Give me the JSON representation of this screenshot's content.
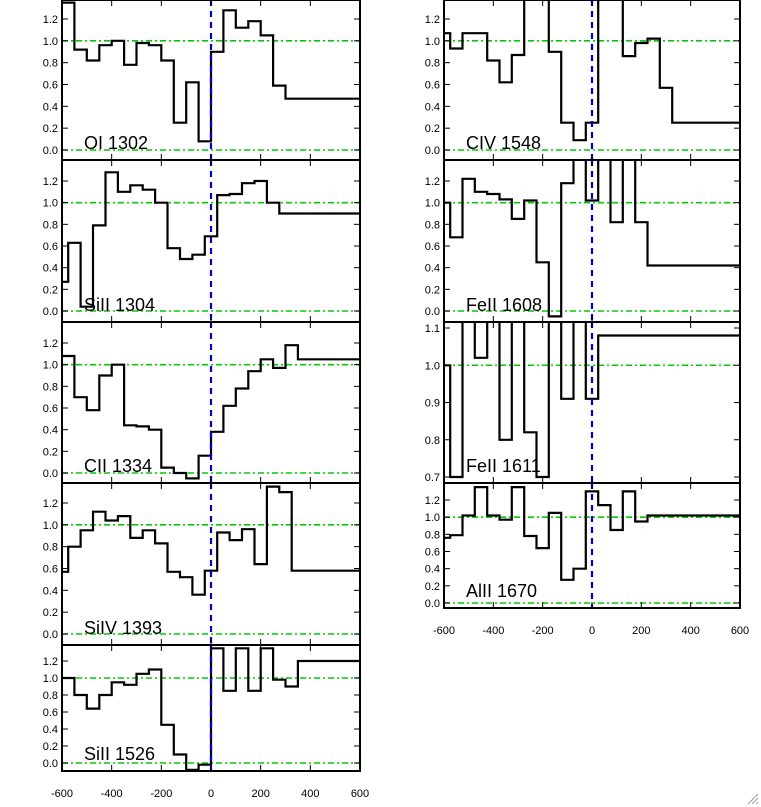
{
  "chart_data": [
    {
      "type": "line",
      "step": true,
      "label": "OI 1302",
      "xlim": [
        -600,
        600
      ],
      "ylim": [
        -0.1,
        1.35
      ],
      "yticks": [
        "0.0",
        "0.2",
        "0.4",
        "0.6",
        "0.8",
        "1.0",
        "1.2"
      ],
      "continuum": 1.0,
      "zero_level": 0.0,
      "x": [
        -600,
        -550,
        -500,
        -450,
        -400,
        -350,
        -300,
        -250,
        -200,
        -150,
        -100,
        -50,
        0,
        50,
        100,
        150,
        200,
        250,
        300,
        350,
        400,
        450,
        500,
        550,
        600
      ],
      "y": [
        1.35,
        0.92,
        0.82,
        0.96,
        1.0,
        0.78,
        0.98,
        0.96,
        0.82,
        0.25,
        0.62,
        0.08,
        0.9,
        1.28,
        1.12,
        1.18,
        1.05,
        0.59,
        0.47,
        0.47,
        0.47,
        0.47,
        0.47,
        0.47,
        0.47
      ]
    },
    {
      "type": "line",
      "step": true,
      "label": "SiII 1304",
      "xlim": [
        -600,
        600
      ],
      "ylim": [
        -0.1,
        1.35
      ],
      "yticks": [
        "0.0",
        "0.2",
        "0.4",
        "0.6",
        "0.8",
        "1.0",
        "1.2"
      ],
      "continuum": 1.0,
      "zero_level": 0.0,
      "x": [
        -600,
        -575,
        -525,
        -475,
        -425,
        -375,
        -325,
        -275,
        -225,
        -175,
        -125,
        -75,
        -25,
        25,
        75,
        125,
        175,
        225,
        275,
        325,
        375,
        425,
        475,
        525,
        575
      ],
      "y": [
        0.27,
        0.63,
        0.04,
        0.79,
        1.28,
        1.1,
        1.16,
        1.12,
        1.0,
        0.58,
        0.48,
        0.52,
        0.69,
        1.07,
        1.08,
        1.18,
        1.2,
        1.0,
        0.9,
        0.9,
        0.9,
        0.9,
        0.9,
        0.9,
        0.9
      ]
    },
    {
      "type": "line",
      "step": true,
      "label": "CII 1334",
      "xlim": [
        -600,
        600
      ],
      "ylim": [
        -0.1,
        1.35
      ],
      "yticks": [
        "0.0",
        "0.2",
        "0.4",
        "0.6",
        "0.8",
        "1.0",
        "1.2"
      ],
      "continuum": 1.0,
      "zero_level": 0.0,
      "x": [
        -600,
        -550,
        -500,
        -450,
        -400,
        -350,
        -300,
        -250,
        -200,
        -150,
        -100,
        -50,
        0,
        50,
        100,
        150,
        200,
        250,
        300,
        350,
        400,
        450,
        500,
        550,
        600
      ],
      "y": [
        1.08,
        0.7,
        0.58,
        0.9,
        1.0,
        0.44,
        0.43,
        0.4,
        0.05,
        0.0,
        -0.05,
        0.16,
        0.38,
        0.62,
        0.78,
        0.94,
        1.05,
        0.97,
        1.18,
        1.05,
        1.05,
        1.05,
        1.05,
        1.05,
        1.05
      ]
    },
    {
      "type": "line",
      "step": true,
      "label": "SiIV 1393",
      "xlim": [
        -600,
        600
      ],
      "ylim": [
        -0.1,
        1.35
      ],
      "yticks": [
        "0.0",
        "0.2",
        "0.4",
        "0.6",
        "0.8",
        "1.0",
        "1.2"
      ],
      "continuum": 1.0,
      "zero_level": 0.0,
      "x": [
        -600,
        -575,
        -525,
        -475,
        -425,
        -375,
        -325,
        -275,
        -225,
        -175,
        -125,
        -75,
        -25,
        25,
        75,
        125,
        175,
        225,
        275,
        325,
        375,
        425,
        475,
        525,
        575
      ],
      "y": [
        0.57,
        0.8,
        0.95,
        1.12,
        1.04,
        1.08,
        0.88,
        0.95,
        0.83,
        0.57,
        0.52,
        0.36,
        0.58,
        0.93,
        0.86,
        0.96,
        0.64,
        1.35,
        1.3,
        0.58,
        0.58,
        0.58,
        0.58,
        0.58,
        0.58
      ]
    },
    {
      "type": "line",
      "step": true,
      "label": "SiII 1526",
      "xlim": [
        -600,
        600
      ],
      "ylim": [
        -0.1,
        1.35
      ],
      "yticks": [
        "0.0",
        "0.2",
        "0.4",
        "0.6",
        "0.8",
        "1.0",
        "1.2"
      ],
      "continuum": 1.0,
      "zero_level": 0.0,
      "x": [
        -600,
        -550,
        -500,
        -450,
        -400,
        -350,
        -300,
        -250,
        -200,
        -150,
        -100,
        -50,
        0,
        50,
        100,
        150,
        200,
        250,
        300,
        350,
        400,
        450,
        500,
        550,
        600
      ],
      "y": [
        1.0,
        0.8,
        0.64,
        0.8,
        0.95,
        0.92,
        1.05,
        1.1,
        0.45,
        0.1,
        -0.08,
        -0.02,
        1.35,
        0.85,
        1.35,
        0.85,
        1.35,
        0.98,
        0.9,
        1.2,
        1.2,
        1.2,
        1.2,
        1.2,
        1.2
      ]
    },
    {
      "type": "line",
      "step": true,
      "label": "CIV 1548",
      "xlim": [
        -600,
        600
      ],
      "ylim": [
        -0.1,
        1.35
      ],
      "yticks": [
        "0.0",
        "0.2",
        "0.4",
        "0.6",
        "0.8",
        "1.0",
        "1.2"
      ],
      "continuum": 1.0,
      "zero_level": 0.0,
      "x": [
        -600,
        -575,
        -525,
        -475,
        -425,
        -375,
        -325,
        -275,
        -225,
        -175,
        -125,
        -75,
        -25,
        25,
        75,
        125,
        175,
        225,
        275,
        325,
        375,
        425,
        475,
        525,
        575
      ],
      "y": [
        1.07,
        0.93,
        1.07,
        1.07,
        0.82,
        0.62,
        0.87,
        1.4,
        1.4,
        0.9,
        0.25,
        0.09,
        0.25,
        1.4,
        1.4,
        0.86,
        0.98,
        1.02,
        0.57,
        0.25,
        0.25,
        0.25,
        0.25,
        0.25,
        0.25
      ]
    },
    {
      "type": "line",
      "step": true,
      "label": "FeII 1608",
      "xlim": [
        -600,
        600
      ],
      "ylim": [
        -0.1,
        1.35
      ],
      "yticks": [
        "0.0",
        "0.2",
        "0.4",
        "0.6",
        "0.8",
        "1.0",
        "1.2"
      ],
      "continuum": 1.0,
      "zero_level": 0.0,
      "x": [
        -600,
        -575,
        -525,
        -475,
        -425,
        -375,
        -325,
        -275,
        -225,
        -175,
        -125,
        -75,
        -25,
        25,
        75,
        125,
        175,
        225,
        275,
        325,
        375,
        425,
        475,
        525,
        575
      ],
      "y": [
        1.0,
        0.68,
        1.22,
        1.1,
        1.08,
        1.03,
        0.85,
        1.02,
        0.45,
        -0.05,
        1.18,
        1.4,
        1.02,
        1.4,
        0.82,
        1.4,
        0.82,
        0.42,
        0.42,
        0.42,
        0.42,
        0.42,
        0.42,
        0.42,
        0.42
      ]
    },
    {
      "type": "line",
      "step": true,
      "label": "FeII 1611",
      "xlim": [
        -600,
        600
      ],
      "ylim": [
        0.7,
        1.1
      ],
      "yticks": [
        "0.7",
        "0.8",
        "0.9",
        "1.0",
        "1.1"
      ],
      "continuum": 1.0,
      "x": [
        -600,
        -575,
        -525,
        -475,
        -425,
        -375,
        -325,
        -275,
        -225,
        -175,
        -125,
        -75,
        -25,
        25,
        75,
        125,
        175,
        225,
        275,
        325,
        375,
        425,
        475,
        525,
        575
      ],
      "y": [
        1.0,
        0.7,
        1.12,
        1.02,
        1.12,
        0.8,
        1.12,
        0.82,
        0.7,
        1.12,
        0.91,
        1.12,
        0.91,
        1.08,
        1.08,
        1.08,
        1.08,
        1.08,
        1.08,
        1.08,
        1.08,
        1.08,
        1.08,
        1.08,
        1.08
      ]
    },
    {
      "type": "line",
      "step": true,
      "label": "AlII 1670",
      "xlim": [
        -600,
        600
      ],
      "ylim": [
        -0.1,
        1.35
      ],
      "yticks": [
        "0.0",
        "0.2",
        "0.4",
        "0.6",
        "0.8",
        "1.0",
        "1.2"
      ],
      "xticks": [
        "-600",
        "-400",
        "-200",
        "0",
        "200",
        "400",
        "600"
      ],
      "continuum": 1.0,
      "zero_level": 0.0,
      "x": [
        -600,
        -575,
        -525,
        -475,
        -425,
        -375,
        -325,
        -275,
        -225,
        -175,
        -125,
        -75,
        -25,
        25,
        75,
        125,
        175,
        225,
        275,
        325,
        375,
        425,
        475,
        525,
        575
      ],
      "y": [
        0.76,
        0.79,
        1.02,
        1.35,
        1.02,
        0.97,
        1.35,
        0.78,
        0.64,
        1.05,
        0.27,
        0.4,
        1.3,
        1.14,
        0.85,
        1.3,
        0.95,
        1.02,
        1.02,
        1.02,
        1.02,
        1.02,
        1.02,
        1.02,
        1.02
      ]
    }
  ],
  "left_xticks": [
    "-600",
    "-400",
    "-200",
    "0",
    "200",
    "400",
    "600"
  ]
}
